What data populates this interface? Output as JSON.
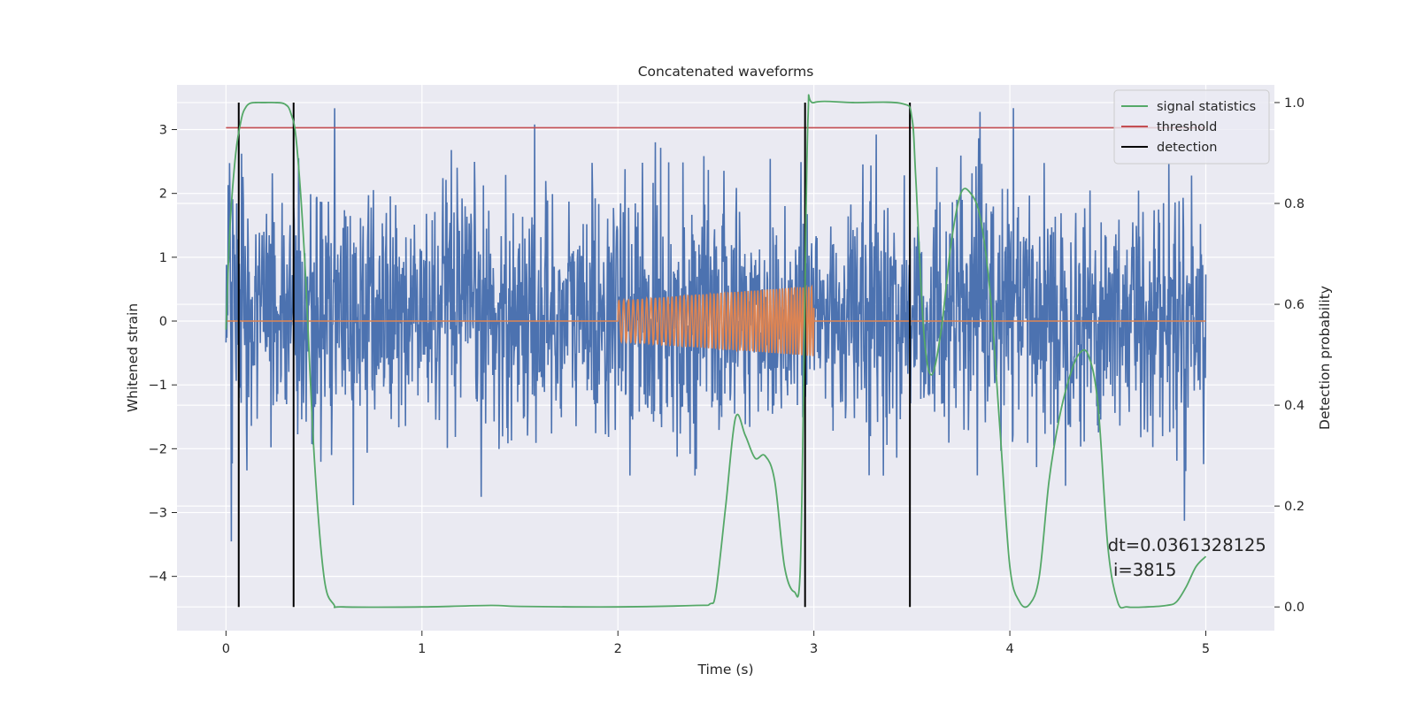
{
  "chart_data": {
    "type": "line",
    "title": "Concatenated waveforms",
    "xlabel": "Time (s)",
    "ylabel": "Whitened strain",
    "y2label": "Detection probability",
    "xlim": [
      -0.25,
      5.35
    ],
    "ylim": [
      -4.85,
      3.7
    ],
    "y2lim": [
      -0.047,
      1.035
    ],
    "xticks": [
      0,
      1,
      2,
      3,
      4,
      5
    ],
    "yticks": [
      -4,
      -3,
      -2,
      -1,
      0,
      1,
      2,
      3
    ],
    "y2ticks": [
      0.0,
      0.2,
      0.4,
      0.6,
      0.8,
      1.0
    ],
    "xtick_labels": [
      "0",
      "1",
      "2",
      "3",
      "4",
      "5"
    ],
    "ytick_labels": [
      "−4",
      "−3",
      "−2",
      "−1",
      "0",
      "1",
      "2",
      "3"
    ],
    "y2tick_labels": [
      "0.0",
      "0.2",
      "0.4",
      "0.6",
      "0.8",
      "1.0"
    ],
    "grid": true,
    "legend_position": "top-right",
    "annotation": {
      "line1": "dt=0.0361328125",
      "line2": " i=3815",
      "x": 4.5,
      "y": -3.6
    },
    "colors": {
      "strain": "#4c72b0",
      "injection": "#dd8452",
      "signal_statistics": "#55a868",
      "threshold": "#c44e52",
      "detection": "#000000",
      "axes_background": "#eaeaf2",
      "grid": "#ffffff"
    },
    "series": [
      {
        "key": "strain",
        "name": "",
        "axis": "left",
        "description_only": "whitened noise, amplitude roughly within -3.5 to 3.4 over 0-5 s",
        "x_range": [
          0,
          5
        ],
        "envelope": {
          "typical_low": -1.4,
          "typical_high": 1.6,
          "max": 3.42,
          "min": -3.55
        }
      },
      {
        "key": "injection",
        "name": "",
        "axis": "left",
        "x_range": [
          0,
          5
        ],
        "chirp": {
          "start": 2.0,
          "end": 3.0,
          "amp_start": 0.32,
          "amp_end": 0.55
        }
      },
      {
        "key": "signal_statistics",
        "name": "signal statistics",
        "axis": "right",
        "x": [
          0.0,
          0.02,
          0.05,
          0.08,
          0.1,
          0.12,
          0.15,
          0.2,
          0.25,
          0.3,
          0.33,
          0.36,
          0.4,
          0.45,
          0.5,
          0.55,
          0.6,
          1.0,
          1.35,
          1.5,
          2.0,
          2.4,
          2.47,
          2.5,
          2.55,
          2.6,
          2.65,
          2.7,
          2.75,
          2.8,
          2.85,
          2.9,
          2.93,
          2.95,
          2.97,
          3.0,
          3.2,
          3.45,
          3.5,
          3.52,
          3.56,
          3.6,
          3.65,
          3.7,
          3.75,
          3.8,
          3.85,
          3.9,
          3.95,
          4.0,
          4.05,
          4.1,
          4.15,
          4.2,
          4.25,
          4.3,
          4.35,
          4.4,
          4.45,
          4.5,
          4.55,
          4.6,
          4.7,
          4.8,
          4.85,
          4.9,
          4.95,
          5.0
        ],
        "values": [
          0.55,
          0.75,
          0.9,
          0.97,
          0.99,
          0.998,
          1.0,
          1.0,
          1.0,
          0.997,
          0.98,
          0.92,
          0.7,
          0.3,
          0.06,
          0.005,
          0.0,
          0.0,
          0.003,
          0.001,
          0.0,
          0.003,
          0.006,
          0.03,
          0.2,
          0.375,
          0.34,
          0.295,
          0.3,
          0.25,
          0.08,
          0.03,
          0.07,
          0.5,
          0.97,
          1.0,
          1.0,
          0.998,
          0.97,
          0.85,
          0.55,
          0.46,
          0.55,
          0.72,
          0.82,
          0.82,
          0.77,
          0.62,
          0.35,
          0.08,
          0.01,
          0.005,
          0.06,
          0.25,
          0.37,
          0.45,
          0.5,
          0.5,
          0.4,
          0.12,
          0.01,
          0.0,
          0.0,
          0.003,
          0.01,
          0.04,
          0.08,
          0.1
        ]
      },
      {
        "key": "threshold",
        "name": "threshold",
        "axis": "right",
        "x": [
          0.0,
          5.0
        ],
        "values": [
          0.95,
          0.95
        ]
      },
      {
        "key": "detection",
        "name": "detection",
        "axis": "right",
        "vlines": [
          0.065,
          0.345,
          2.955,
          3.49
        ],
        "vline_range": [
          0.0,
          1.0
        ]
      }
    ]
  }
}
